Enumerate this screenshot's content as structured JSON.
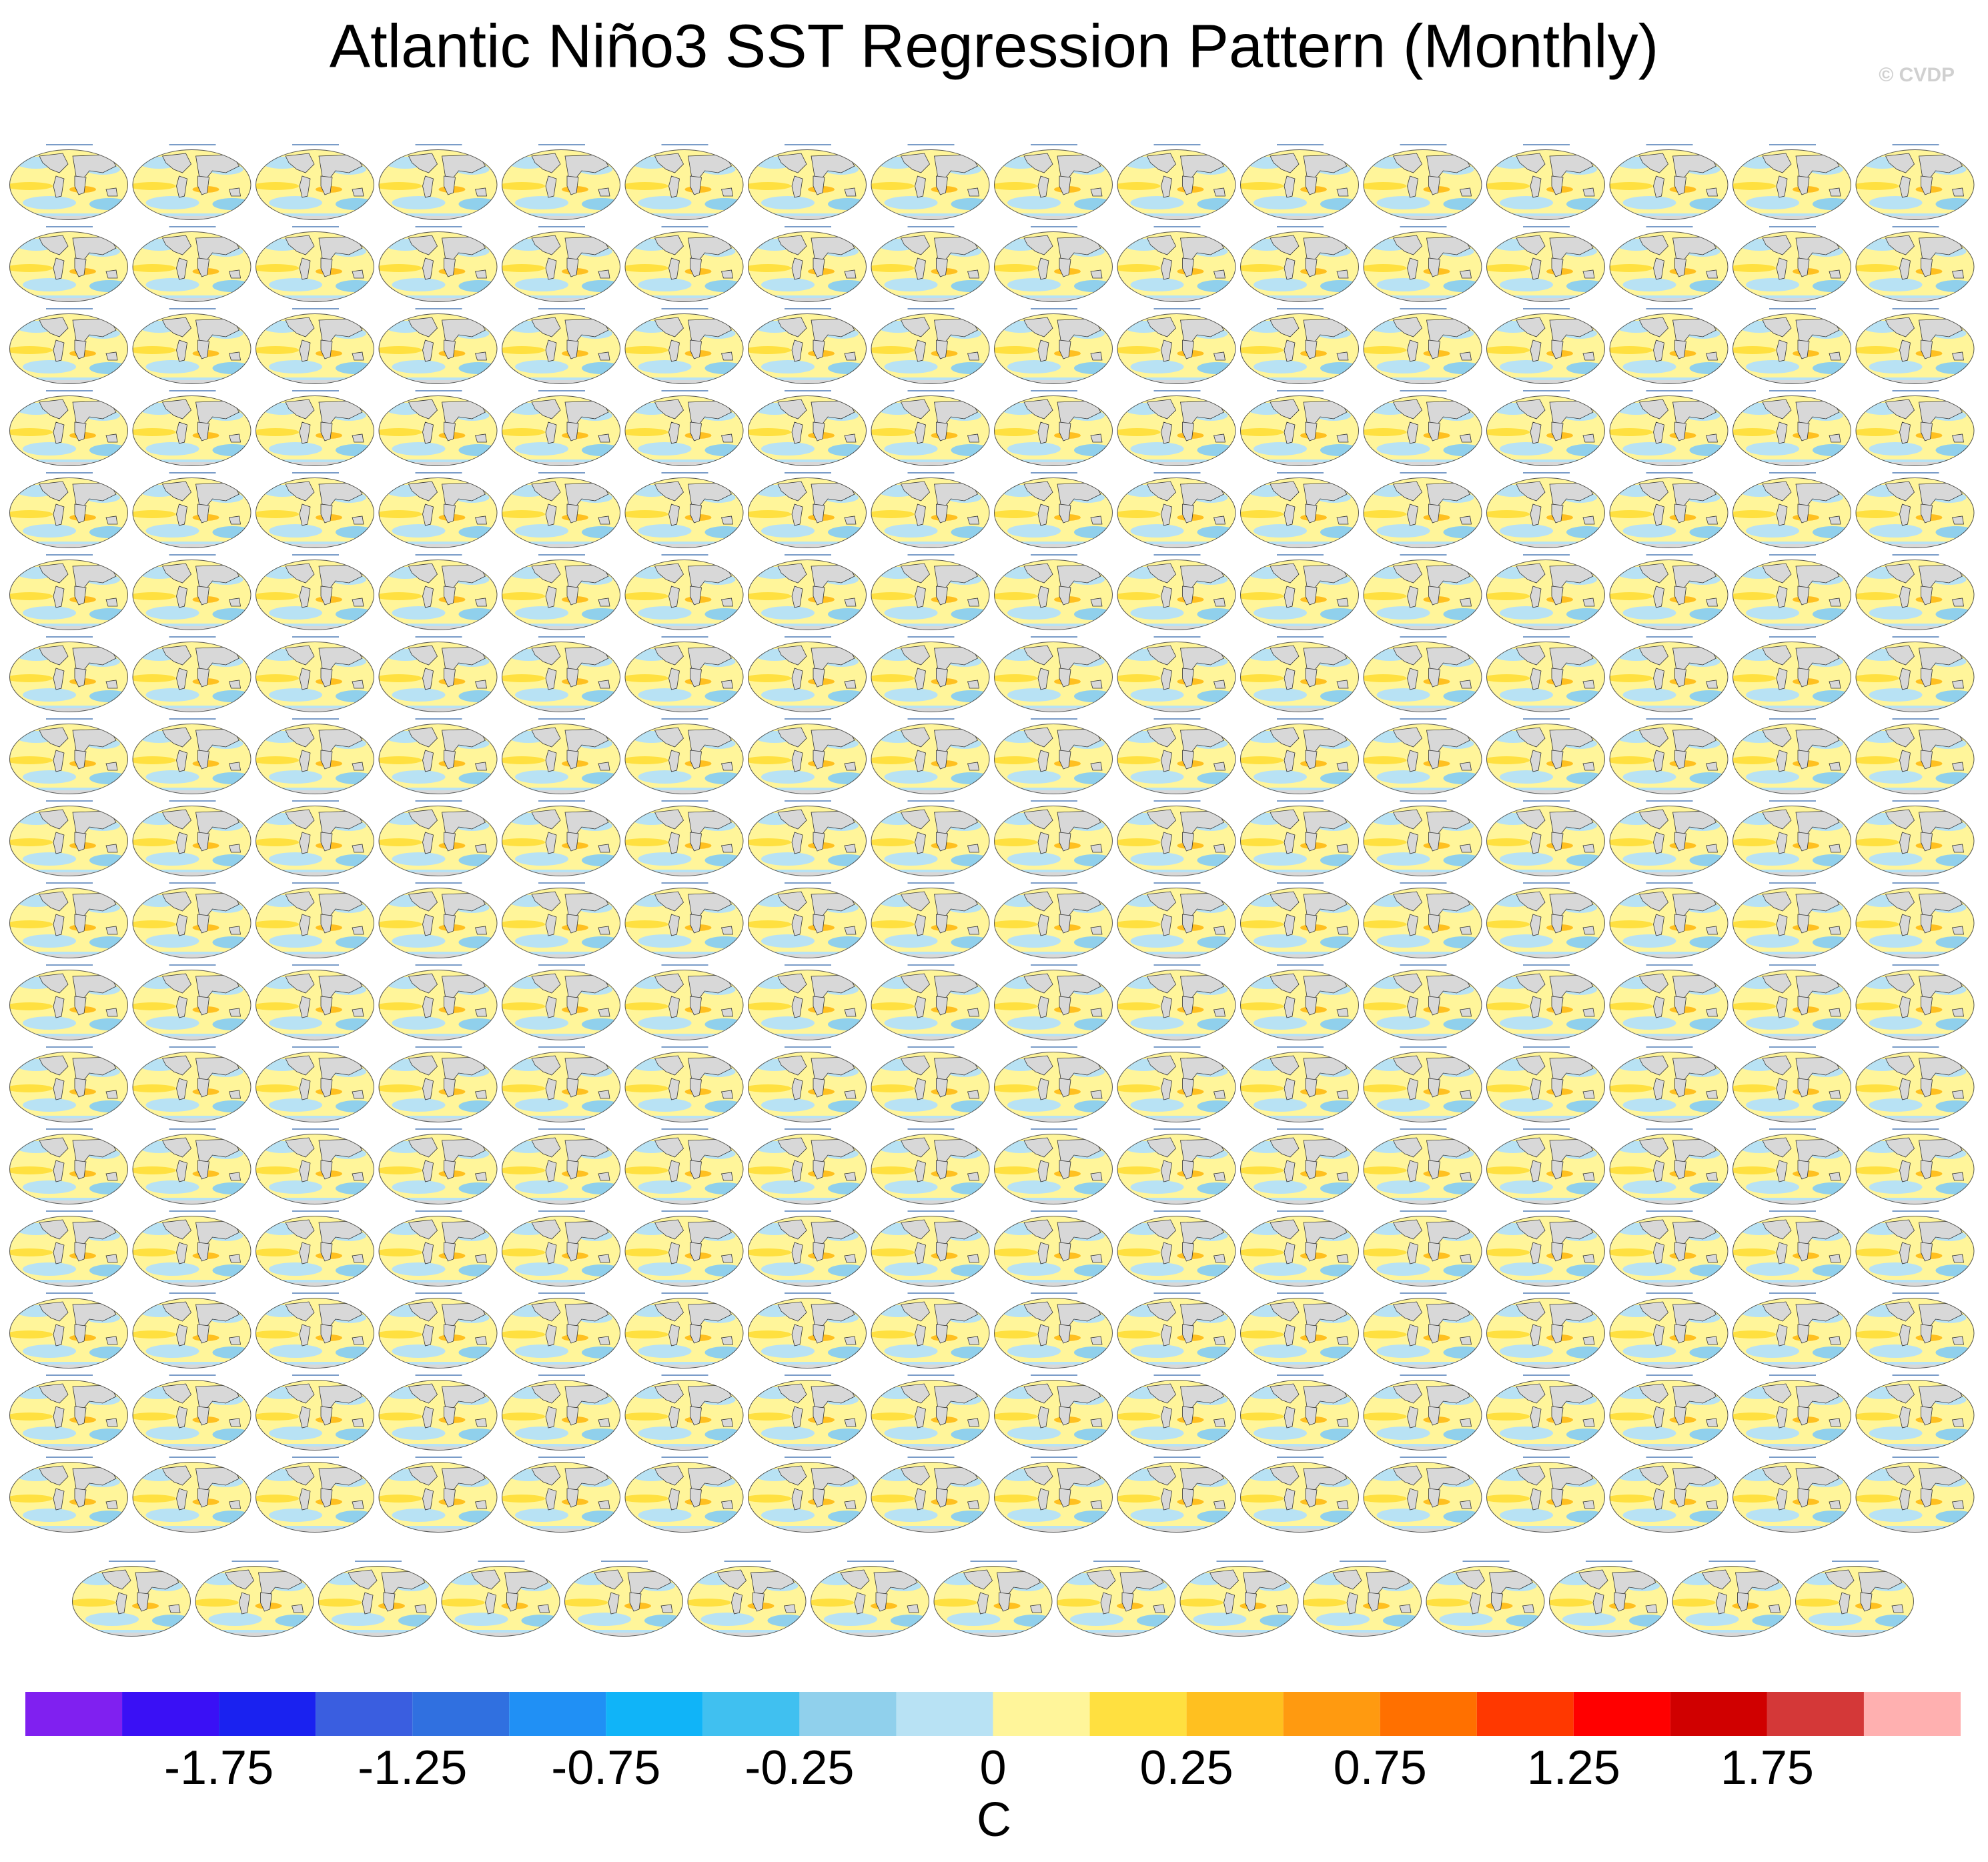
{
  "chart_data": {
    "type": "map-panel",
    "title": "Atlantic Niño3 SST Regression Pattern (Monthly)",
    "watermark": "© CVDP",
    "colorbar": {
      "unit": "C",
      "levels": [
        -2,
        -1.75,
        -1.5,
        -1.25,
        -1,
        -0.75,
        -0.5,
        -0.25,
        -0.1,
        0,
        0.1,
        0.25,
        0.5,
        0.75,
        1,
        1.25,
        1.5,
        1.75,
        2
      ],
      "colors": [
        "#8020f0",
        "#3a10f5",
        "#1a22f0",
        "#3a5ee0",
        "#3070e0",
        "#2090f5",
        "#10b4f8",
        "#40c0f0",
        "#90d0ec",
        "#b8e2f4",
        "#fff59a",
        "#ffe040",
        "#ffc020",
        "#ff9a10",
        "#ff7000",
        "#ff3800",
        "#ff0000",
        "#d00000",
        "#d43838",
        "#ffb0b0"
      ],
      "ticks": [
        -1.75,
        -1.25,
        -0.75,
        -0.25,
        0,
        0.25,
        0.75,
        1.25,
        1.75
      ]
    }
  }
}
